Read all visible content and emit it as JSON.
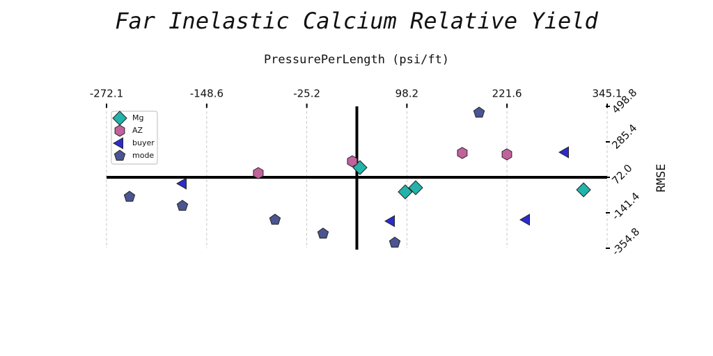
{
  "chart_data": {
    "type": "scatter",
    "title": "Far Inelastic Calcium Relative Yield",
    "x_label": "PressurePerLength (psi/ft)",
    "y_label": "RMSE",
    "xlim": [
      -272.1,
      345.1
    ],
    "xticks": [
      -272.1,
      -148.6,
      -25.2,
      98.2,
      221.6,
      345.1
    ],
    "ylim": [
      -354.8,
      498.8
    ],
    "yticks": [
      -354.8,
      -141.4,
      {
        "value": 72.0,
        "label": "72.0"
      },
      285.4,
      498.8
    ],
    "grid": "x",
    "spine_position": "center",
    "legend": "upper left",
    "series": [
      {
        "name": "Mg",
        "color": "#22b3ab",
        "marker": "diamond",
        "x": [
          40.4,
          96.2,
          109.0,
          316.0
        ],
        "values": [
          130.6,
          -15.8,
          9.3,
          -3.3
        ]
      },
      {
        "name": "AZ",
        "color": "#c2629c",
        "marker": "hexagon",
        "x": [
          -85.0,
          30.9,
          166.5,
          221.5
        ],
        "values": [
          97.1,
          168.3,
          218.5,
          210.1
        ]
      },
      {
        "name": "buyer",
        "color": "#2b2bcf",
        "marker": "triangle-left",
        "x": [
          -177.7,
          79.0,
          245.5,
          293.6
        ],
        "values": [
          34.4,
          -191.6,
          -183.2,
          222.7
        ]
      },
      {
        "name": "mode",
        "color": "#4b5591",
        "marker": "pentagon",
        "x": [
          -243.8,
          -178.5,
          -64.4,
          -5.1,
          83.3,
          187.2
        ],
        "values": [
          -45.1,
          -99.5,
          -183.2,
          -266.9,
          -321.3,
          461.1
        ]
      }
    ]
  }
}
